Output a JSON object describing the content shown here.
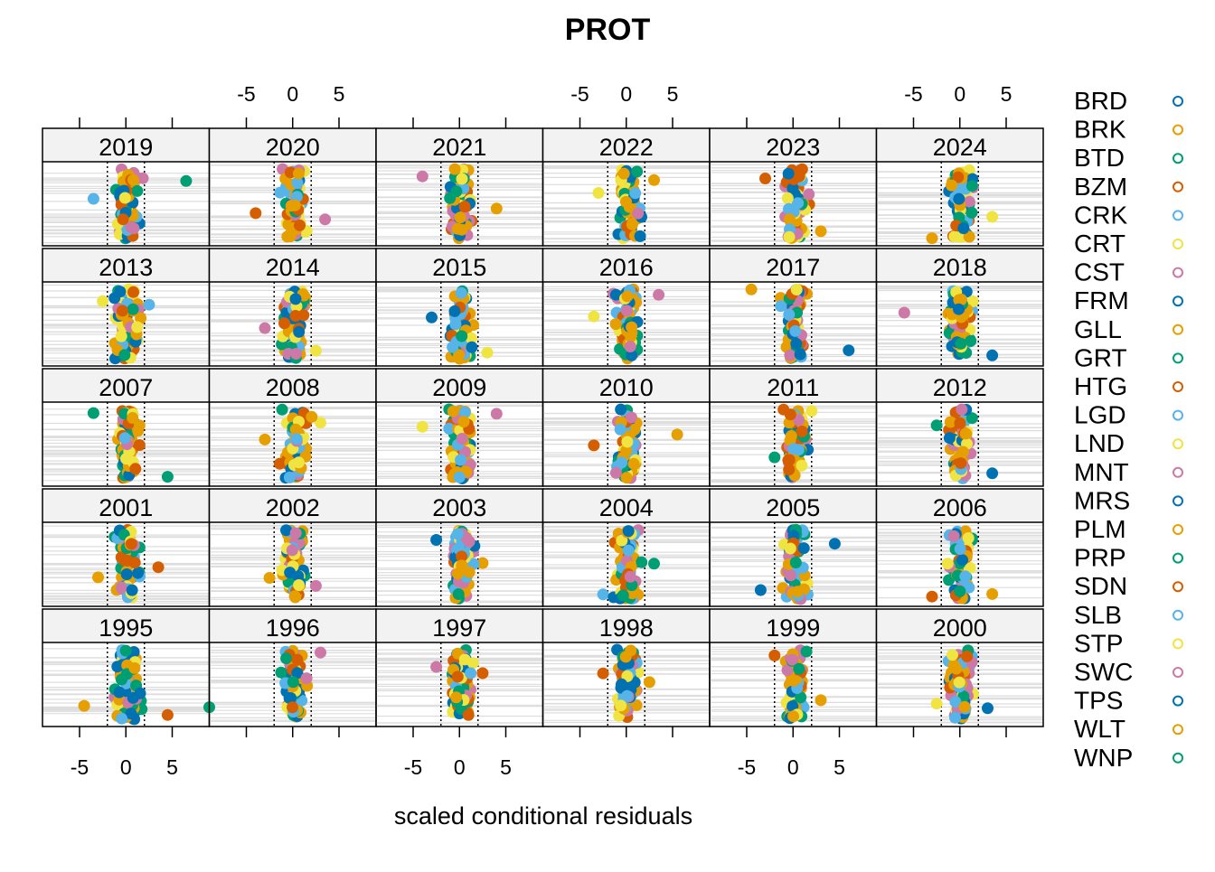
{
  "chart_data": {
    "type": "scatter",
    "title": "PROT",
    "xlabel": "scaled conditional residuals",
    "ylabel": "",
    "xlim": [
      -9,
      9
    ],
    "xticks": [
      -5,
      0,
      5
    ],
    "reference_lines": [
      -2,
      2
    ],
    "layout": "5 rows x 6 columns of panels, one per year",
    "grid": true,
    "legend_position": "right",
    "panel_rows": [
      [
        "2019",
        "2020",
        "2021",
        "2022",
        "2023",
        "2024"
      ],
      [
        "2013",
        "2014",
        "2015",
        "2016",
        "2017",
        "2018"
      ],
      [
        "2007",
        "2008",
        "2009",
        "2010",
        "2011",
        "2012"
      ],
      [
        "2001",
        "2002",
        "2003",
        "2004",
        "2005",
        "2006"
      ],
      [
        "1995",
        "1996",
        "1997",
        "1998",
        "1999",
        "2000"
      ]
    ],
    "panel_ranges": {
      "2019": [
        -3.5,
        6.5
      ],
      "2020": [
        -4,
        3.5
      ],
      "2021": [
        -4,
        4
      ],
      "2022": [
        -3,
        3
      ],
      "2023": [
        -3,
        3
      ],
      "2024": [
        -3,
        3.5
      ],
      "2013": [
        -2.5,
        2.5
      ],
      "2014": [
        -3,
        2.5
      ],
      "2015": [
        -3,
        3
      ],
      "2016": [
        -3.5,
        3.5
      ],
      "2017": [
        -4.5,
        6
      ],
      "2018": [
        -6,
        3.5
      ],
      "2007": [
        -3.5,
        4.5
      ],
      "2008": [
        -3,
        3
      ],
      "2009": [
        -4,
        4
      ],
      "2010": [
        -3.5,
        5.5
      ],
      "2011": [
        -2,
        2
      ],
      "2012": [
        -2.5,
        3.5
      ],
      "2001": [
        -3,
        3.5
      ],
      "2002": [
        -2.5,
        2.5
      ],
      "2003": [
        -2.5,
        2.5
      ],
      "2004": [
        -2.5,
        3
      ],
      "2005": [
        -3.5,
        4.5
      ],
      "2006": [
        -3,
        3.5
      ],
      "1995": [
        -4.5,
        4.5
      ],
      "1996": [
        -9,
        3
      ],
      "1997": [
        -2.5,
        2.5
      ],
      "1998": [
        -2.5,
        2.5
      ],
      "1999": [
        -2,
        3
      ],
      "2000": [
        -2.5,
        3
      ]
    },
    "groups": [
      {
        "name": "BRD",
        "color": "#0072B2"
      },
      {
        "name": "BRK",
        "color": "#E69F00"
      },
      {
        "name": "BTD",
        "color": "#009E73"
      },
      {
        "name": "BZM",
        "color": "#D55E00"
      },
      {
        "name": "CRK",
        "color": "#56B4E9"
      },
      {
        "name": "CRT",
        "color": "#F0E442"
      },
      {
        "name": "CST",
        "color": "#CC79A7"
      },
      {
        "name": "FRM",
        "color": "#0072B2"
      },
      {
        "name": "GLL",
        "color": "#E69F00"
      },
      {
        "name": "GRT",
        "color": "#009E73"
      },
      {
        "name": "HTG",
        "color": "#D55E00"
      },
      {
        "name": "LGD",
        "color": "#56B4E9"
      },
      {
        "name": "LND",
        "color": "#F0E442"
      },
      {
        "name": "MNT",
        "color": "#CC79A7"
      },
      {
        "name": "MRS",
        "color": "#0072B2"
      },
      {
        "name": "PLM",
        "color": "#E69F00"
      },
      {
        "name": "PRP",
        "color": "#009E73"
      },
      {
        "name": "SDN",
        "color": "#D55E00"
      },
      {
        "name": "SLB",
        "color": "#56B4E9"
      },
      {
        "name": "STP",
        "color": "#F0E442"
      },
      {
        "name": "SWC",
        "color": "#CC79A7"
      },
      {
        "name": "TPS",
        "color": "#0072B2"
      },
      {
        "name": "WLT",
        "color": "#E69F00"
      },
      {
        "name": "WNP",
        "color": "#009E73"
      }
    ],
    "point_color_cycle": [
      "#E69F00",
      "#E69F00",
      "#0072B2",
      "#56B4E9",
      "#F0E442",
      "#CC79A7",
      "#009E73",
      "#D55E00"
    ]
  }
}
